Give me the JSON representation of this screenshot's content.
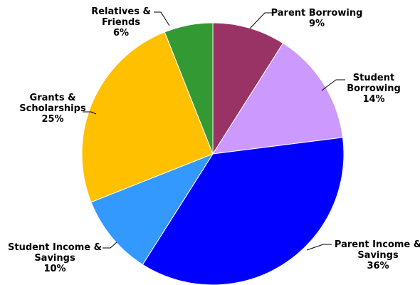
{
  "chart_data": {
    "type": "pie",
    "title": "",
    "slices": [
      {
        "label_lines": [
          "Parent Borrowing"
        ],
        "pct_text": "9%",
        "value": 9,
        "color": "#993366"
      },
      {
        "label_lines": [
          "Student",
          "Borrowing"
        ],
        "pct_text": "14%",
        "value": 14,
        "color": "#cc99ff"
      },
      {
        "label_lines": [
          "Parent Income &",
          "Savings"
        ],
        "pct_text": "36%",
        "value": 36,
        "color": "#0000ff"
      },
      {
        "label_lines": [
          "Student Income &",
          "Savings"
        ],
        "pct_text": "10%",
        "value": 10,
        "color": "#3399ff"
      },
      {
        "label_lines": [
          "Grants &",
          "Scholarships"
        ],
        "pct_text": "25%",
        "value": 25,
        "color": "#ffc000"
      },
      {
        "label_lines": [
          "Relatives &",
          "Friends"
        ],
        "pct_text": "6%",
        "value": 6,
        "color": "#339933"
      }
    ]
  }
}
